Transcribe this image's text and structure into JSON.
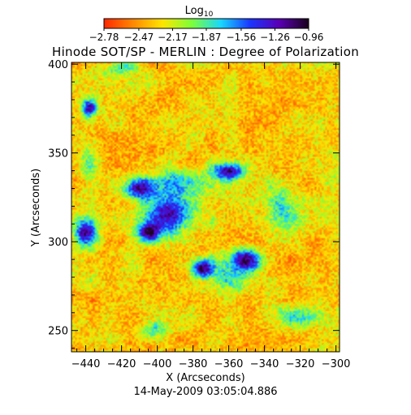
{
  "chart_data": {
    "type": "heatmap",
    "title": "Hinode SOT/SP - MERLIN : Degree of Polarization",
    "xlabel": "X (Arcseconds)",
    "ylabel": "Y (Arcseconds)",
    "timestamp": "14-May-2009 03:05:04.886",
    "xlim": [
      -448,
      -298
    ],
    "ylim": [
      238,
      401
    ],
    "x_ticks": [
      -440,
      -420,
      -400,
      -380,
      -360,
      -340,
      -320,
      -300
    ],
    "y_ticks": [
      250,
      300,
      350,
      400
    ],
    "colorbar": {
      "title": "Log",
      "title_subscript": "10",
      "tick_labels": [
        "-2.78",
        "-2.47",
        "-2.17",
        "-1.87",
        "-1.56",
        "-1.26",
        "-0.96"
      ],
      "range": [
        -2.78,
        -0.96
      ],
      "colors": [
        "#ff2a00",
        "#ff8a00",
        "#ffe600",
        "#7dff3a",
        "#18d8ff",
        "#1a36ff",
        "#5a00b4",
        "#1a001e"
      ]
    },
    "blue_regions": [
      {
        "x": -395,
        "y": 315,
        "sx": 14,
        "sy": 11
      },
      {
        "x": -410,
        "y": 330,
        "sx": 8,
        "sy": 6
      },
      {
        "x": -350,
        "y": 290,
        "sx": 8,
        "sy": 6
      },
      {
        "x": -375,
        "y": 285,
        "sx": 6,
        "sy": 5
      },
      {
        "x": -440,
        "y": 305,
        "sx": 6,
        "sy": 7
      },
      {
        "x": -360,
        "y": 340,
        "sx": 9,
        "sy": 5
      },
      {
        "x": -438,
        "y": 375,
        "sx": 4,
        "sy": 5
      },
      {
        "x": -405,
        "y": 305,
        "sx": 6,
        "sy": 5
      }
    ],
    "green_regions": [
      {
        "x": -330,
        "y": 320,
        "sx": 9,
        "sy": 12
      },
      {
        "x": -320,
        "y": 258,
        "sx": 13,
        "sy": 6
      },
      {
        "x": -438,
        "y": 345,
        "sx": 5,
        "sy": 9
      },
      {
        "x": -388,
        "y": 333,
        "sx": 20,
        "sy": 7
      },
      {
        "x": -360,
        "y": 280,
        "sx": 12,
        "sy": 9
      },
      {
        "x": -420,
        "y": 398,
        "sx": 10,
        "sy": 4
      },
      {
        "x": -402,
        "y": 250,
        "sx": 7,
        "sy": 5
      }
    ]
  }
}
